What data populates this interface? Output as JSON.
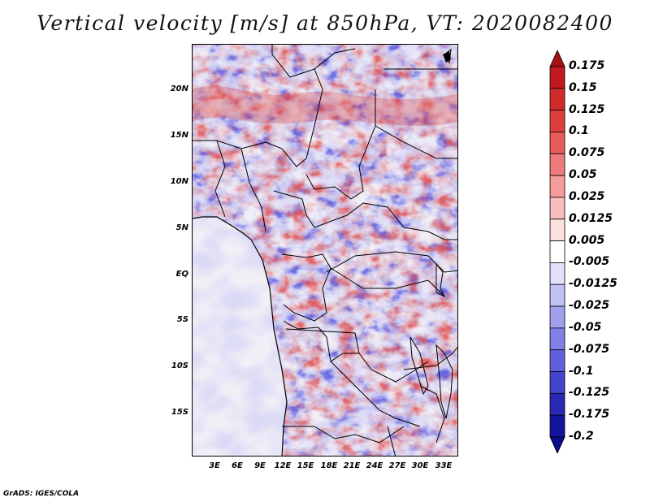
{
  "title": "Vertical velocity [m/s] at 850hPa, VT: 2020082400",
  "credit": "GrADS: IGES/COLA",
  "map": {
    "lat_range": [
      -20,
      25
    ],
    "lon_range": [
      0,
      35
    ],
    "lat_labels": [
      "20N",
      "15N",
      "10N",
      "5N",
      "EQ",
      "5S",
      "10S",
      "15S"
    ],
    "lon_labels": [
      "3E",
      "6E",
      "9E",
      "12E",
      "15E",
      "18E",
      "21E",
      "24E",
      "27E",
      "30E",
      "33E"
    ]
  },
  "colorbar": {
    "labels": [
      "0.175",
      "0.15",
      "0.125",
      "0.1",
      "0.075",
      "0.05",
      "0.025",
      "0.0125",
      "0.005",
      "-0.005",
      "-0.0125",
      "-0.025",
      "-0.05",
      "-0.075",
      "-0.1",
      "-0.125",
      "-0.175",
      "-0.2"
    ],
    "colors": [
      "#a50f15",
      "#c1191f",
      "#d02b2b",
      "#de3e3e",
      "#e65a5a",
      "#ee7b7b",
      "#f49c9c",
      "#f9bdbd",
      "#fde0e0",
      "#ffffff",
      "#e0e0fb",
      "#c2c2f5",
      "#a0a0ee",
      "#8080e6",
      "#6060dc",
      "#4444cc",
      "#2828b4",
      "#14149c",
      "#0a0a8a"
    ]
  }
}
